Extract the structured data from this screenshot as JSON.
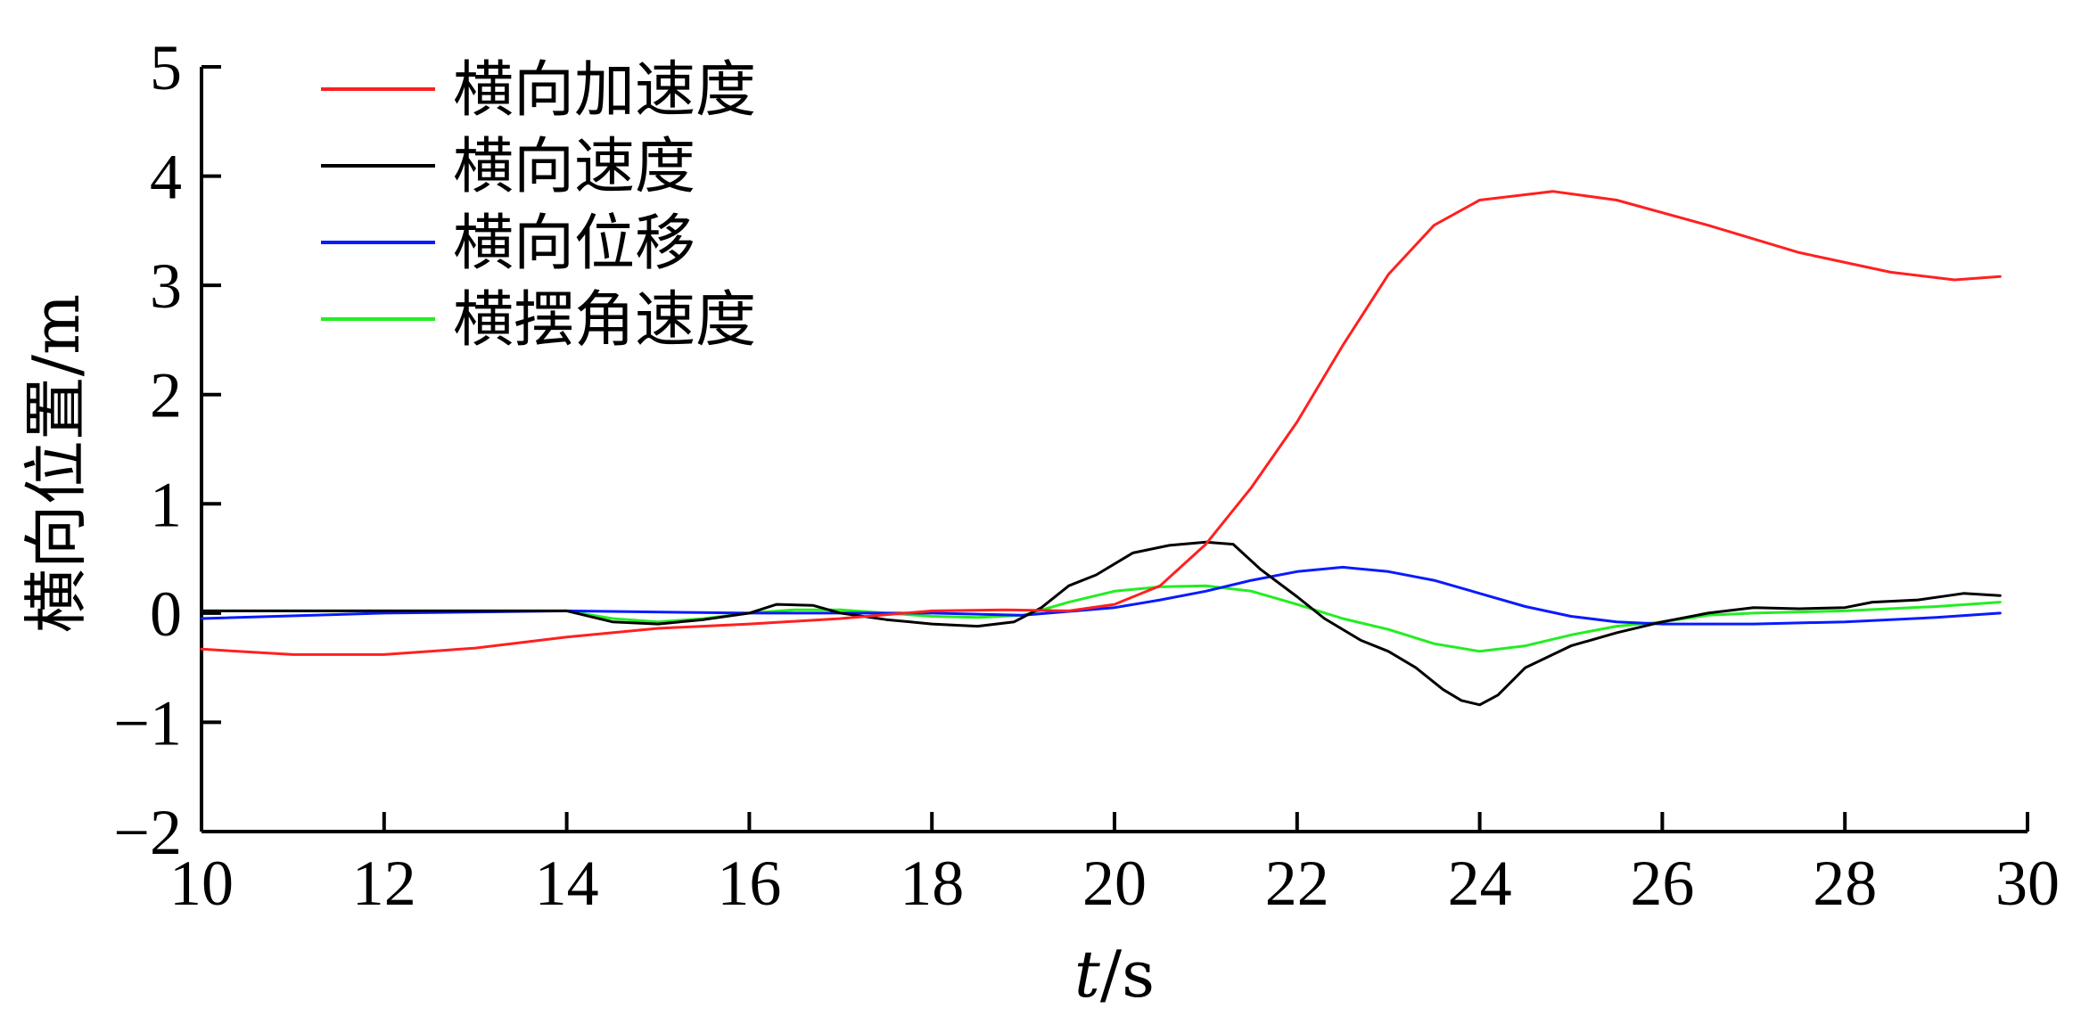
{
  "chart_data": {
    "type": "line",
    "title": "",
    "xlabel_italic": "t",
    "xlabel_unit": "/s",
    "ylabel": "横向位置/m",
    "xlim": [
      10,
      30
    ],
    "ylim": [
      -2,
      5
    ],
    "xticks": [
      10,
      12,
      14,
      16,
      18,
      20,
      22,
      24,
      26,
      28,
      30
    ],
    "yticks": [
      -2,
      -1,
      0,
      1,
      2,
      3,
      4,
      5
    ],
    "grid": false,
    "legend_position": "top-left",
    "series": [
      {
        "name": "横向加速度",
        "color": "#ff2020",
        "x": [
          10,
          11,
          12,
          13,
          14,
          15,
          16,
          17,
          18,
          18.8,
          19.5,
          20,
          20.5,
          21,
          21.5,
          22,
          22.5,
          23,
          23.5,
          24,
          24.8,
          25.5,
          26.5,
          27.5,
          28.5,
          29.2,
          29.7
        ],
        "y": [
          -0.33,
          -0.38,
          -0.38,
          -0.32,
          -0.22,
          -0.14,
          -0.1,
          -0.05,
          0.02,
          0.03,
          0.02,
          0.08,
          0.25,
          0.63,
          1.15,
          1.75,
          2.45,
          3.1,
          3.55,
          3.78,
          3.86,
          3.78,
          3.55,
          3.3,
          3.12,
          3.05,
          3.08
        ]
      },
      {
        "name": "横向速度",
        "color": "#000000",
        "x": [
          10,
          12,
          14,
          14.5,
          15,
          15.5,
          16,
          16.3,
          16.7,
          17,
          17.5,
          18,
          18.5,
          18.9,
          19.2,
          19.5,
          19.8,
          20.2,
          20.6,
          21,
          21.3,
          21.6,
          22,
          22.3,
          22.7,
          23,
          23.3,
          23.6,
          23.8,
          24,
          24.2,
          24.5,
          25,
          25.5,
          26,
          26.5,
          27,
          27.5,
          28,
          28.3,
          28.8,
          29.3,
          29.7
        ],
        "y": [
          0.02,
          0.02,
          0.02,
          -0.08,
          -0.1,
          -0.06,
          0,
          0.08,
          0.07,
          0,
          -0.06,
          -0.1,
          -0.12,
          -0.08,
          0.05,
          0.25,
          0.35,
          0.55,
          0.62,
          0.65,
          0.63,
          0.4,
          0.15,
          -0.05,
          -0.25,
          -0.35,
          -0.5,
          -0.7,
          -0.8,
          -0.84,
          -0.75,
          -0.5,
          -0.3,
          -0.18,
          -0.08,
          0,
          0.05,
          0.04,
          0.05,
          0.1,
          0.12,
          0.18,
          0.16
        ]
      },
      {
        "name": "横向位移",
        "color": "#0a1aff",
        "x": [
          10,
          12,
          14,
          16,
          18,
          19,
          20,
          20.5,
          21,
          21.5,
          22,
          22.5,
          23,
          23.5,
          24,
          24.5,
          25,
          25.5,
          26,
          27,
          28,
          29,
          29.7
        ],
        "y": [
          -0.05,
          0,
          0.02,
          0,
          0,
          -0.02,
          0.05,
          0.12,
          0.2,
          0.3,
          0.38,
          0.42,
          0.38,
          0.3,
          0.18,
          0.06,
          -0.03,
          -0.08,
          -0.1,
          -0.1,
          -0.08,
          -0.04,
          0
        ]
      },
      {
        "name": "横摆角速度",
        "color": "#22ee22",
        "x": [
          10,
          12,
          14,
          14.5,
          15,
          15.5,
          16,
          16.5,
          17,
          17.5,
          18,
          18.5,
          19,
          19.5,
          20,
          20.5,
          21,
          21.5,
          22,
          22.5,
          23,
          23.5,
          24,
          24.5,
          25,
          25.5,
          26,
          26.5,
          27,
          28,
          29,
          29.7
        ],
        "y": [
          0.02,
          0.02,
          0.02,
          -0.05,
          -0.08,
          -0.05,
          0,
          0.03,
          0.03,
          0,
          -0.03,
          -0.04,
          -0.02,
          0.1,
          0.2,
          0.24,
          0.25,
          0.2,
          0.08,
          -0.05,
          -0.15,
          -0.28,
          -0.35,
          -0.3,
          -0.2,
          -0.12,
          -0.08,
          -0.02,
          0,
          0.02,
          0.06,
          0.1
        ]
      }
    ]
  }
}
